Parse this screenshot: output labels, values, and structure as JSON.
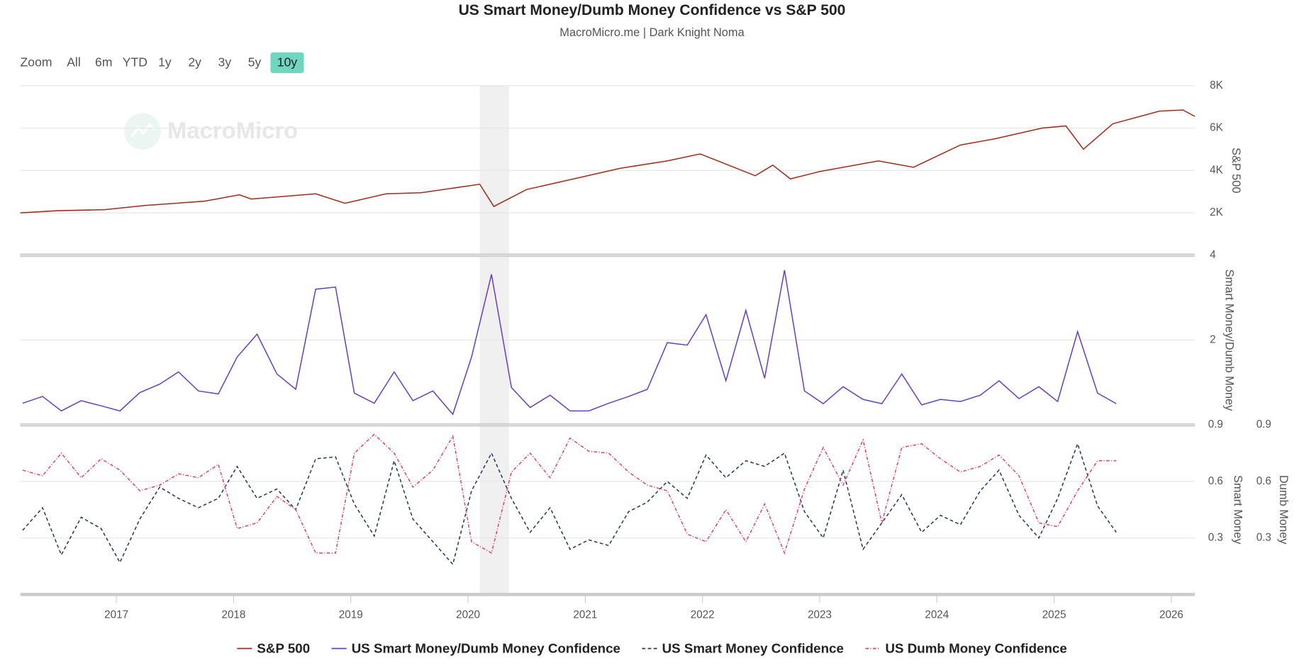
{
  "title": "US Smart Money/Dumb Money Confidence vs S&P 500",
  "subtitle": "MacroMicro.me | Dark Knight Noma",
  "watermark": "MacroMicro",
  "range_selector": {
    "label": "Zoom",
    "buttons": [
      "All",
      "6m",
      "YTD",
      "1y",
      "2y",
      "3y",
      "5y",
      "10y"
    ],
    "selected": 7
  },
  "chart_data": [
    {
      "type": "line",
      "xlim": [
        2016.18,
        2026.2
      ],
      "shade": [
        2020.1,
        2020.35
      ],
      "y_label": "S&P 500",
      "ylim": [
        0,
        8000
      ],
      "yticks": [
        {
          "value": 2000,
          "label": "2K"
        },
        {
          "value": 4000,
          "label": "4K"
        },
        {
          "value": 6000,
          "label": "6K"
        },
        {
          "value": 8000,
          "label": "8K"
        }
      ],
      "grid": true,
      "x": [
        2016.18,
        2016.5,
        2016.9,
        2017.25,
        2017.75,
        2018.05,
        2018.15,
        2018.7,
        2018.95,
        2019.3,
        2019.6,
        2020.1,
        2020.22,
        2020.5,
        2020.9,
        2021.3,
        2021.7,
        2021.98,
        2022.45,
        2022.6,
        2022.75,
        2023.0,
        2023.5,
        2023.8,
        2024.2,
        2024.5,
        2024.9,
        2025.1,
        2025.25,
        2025.5,
        2025.9,
        2026.1,
        2026.2
      ],
      "series": [
        {
          "name": "S&P 500",
          "color": "#a52a1a",
          "dash": "solid",
          "values": [
            2000,
            2100,
            2150,
            2350,
            2550,
            2850,
            2650,
            2900,
            2450,
            2900,
            2950,
            3350,
            2300,
            3100,
            3600,
            4100,
            4450,
            4780,
            3750,
            4250,
            3600,
            3950,
            4450,
            4150,
            5200,
            5500,
            6000,
            6100,
            5000,
            6200,
            6800,
            6850,
            6550
          ]
        }
      ]
    },
    {
      "type": "line",
      "y_label": "Smart Money/Dumb Money",
      "ylim": [
        0,
        4
      ],
      "yticks": [
        2,
        4
      ],
      "grid": true,
      "x": [
        2016.2,
        2016.37,
        2016.53,
        2016.7,
        2016.87,
        2017.03,
        2017.2,
        2017.37,
        2017.53,
        2017.7,
        2017.87,
        2018.03,
        2018.2,
        2018.37,
        2018.53,
        2018.7,
        2018.87,
        2019.03,
        2019.2,
        2019.37,
        2019.53,
        2019.7,
        2019.87,
        2020.03,
        2020.2,
        2020.37,
        2020.53,
        2020.7,
        2020.87,
        2021.03,
        2021.2,
        2021.37,
        2021.53,
        2021.7,
        2021.87,
        2022.03,
        2022.2,
        2022.37,
        2022.53,
        2022.7,
        2022.87,
        2023.03,
        2023.2,
        2023.37,
        2023.53,
        2023.7,
        2023.87,
        2024.03,
        2024.2,
        2024.37,
        2024.53,
        2024.7,
        2024.87,
        2025.03,
        2025.2,
        2025.37,
        2025.53
      ],
      "series": [
        {
          "name": "US Smart Money/Dumb Money Confidence",
          "color": "#6a3fc1",
          "dash": "solid",
          "values": [
            0.51,
            0.67,
            0.33,
            0.57,
            0.45,
            0.33,
            0.76,
            0.96,
            1.25,
            0.8,
            0.73,
            1.6,
            2.14,
            1.2,
            0.84,
            3.2,
            3.25,
            0.75,
            0.51,
            1.25,
            0.57,
            0.8,
            0.25,
            1.6,
            3.55,
            0.88,
            0.41,
            0.7,
            0.33,
            0.33,
            0.51,
            0.67,
            0.84,
            1.94,
            1.88,
            2.6,
            1.04,
            2.7,
            1.1,
            3.65,
            0.8,
            0.5,
            0.9,
            0.6,
            0.5,
            1.2,
            0.47,
            0.6,
            0.55,
            0.7,
            1.04,
            0.62,
            0.9,
            0.55,
            2.2,
            0.75,
            0.5
          ]
        }
      ]
    },
    {
      "type": "line",
      "y_label": "Smart Money",
      "y2_label": "Dumb Money",
      "ylim": [
        0,
        0.9
      ],
      "yticks": [
        0.3,
        0.6,
        0.9
      ],
      "y2lim": [
        0,
        0.9
      ],
      "y2ticks": [
        0.3,
        0.6,
        0.9
      ],
      "grid": true,
      "xticks": [
        2017,
        2018,
        2019,
        2020,
        2021,
        2022,
        2023,
        2024,
        2025,
        2026
      ],
      "x": [
        2016.2,
        2016.37,
        2016.53,
        2016.7,
        2016.87,
        2017.03,
        2017.2,
        2017.37,
        2017.53,
        2017.7,
        2017.87,
        2018.03,
        2018.2,
        2018.37,
        2018.53,
        2018.7,
        2018.87,
        2019.03,
        2019.2,
        2019.37,
        2019.53,
        2019.7,
        2019.87,
        2020.03,
        2020.2,
        2020.37,
        2020.53,
        2020.7,
        2020.87,
        2021.03,
        2021.2,
        2021.37,
        2021.53,
        2021.7,
        2021.87,
        2022.03,
        2022.2,
        2022.37,
        2022.53,
        2022.7,
        2022.87,
        2023.03,
        2023.2,
        2023.37,
        2023.53,
        2023.7,
        2023.87,
        2024.03,
        2024.2,
        2024.37,
        2024.53,
        2024.7,
        2024.87,
        2025.03,
        2025.2,
        2025.37,
        2025.53
      ],
      "series": [
        {
          "name": "US Smart Money Confidence",
          "color": "#1f3a5f",
          "dash": "dashed",
          "values": [
            0.34,
            0.46,
            0.21,
            0.41,
            0.35,
            0.17,
            0.4,
            0.57,
            0.51,
            0.46,
            0.51,
            0.68,
            0.51,
            0.56,
            0.45,
            0.72,
            0.73,
            0.48,
            0.31,
            0.71,
            0.4,
            0.28,
            0.16,
            0.55,
            0.75,
            0.51,
            0.33,
            0.46,
            0.24,
            0.29,
            0.26,
            0.44,
            0.49,
            0.6,
            0.51,
            0.74,
            0.62,
            0.71,
            0.68,
            0.75,
            0.44,
            0.3,
            0.66,
            0.24,
            0.38,
            0.53,
            0.33,
            0.42,
            0.37,
            0.55,
            0.66,
            0.42,
            0.3,
            0.51,
            0.8,
            0.47,
            0.33
          ]
        },
        {
          "name": "US Dumb Money Confidence",
          "color": "#e8436a",
          "dash": "dashdot",
          "axis": "y2",
          "values": [
            0.66,
            0.63,
            0.75,
            0.62,
            0.72,
            0.66,
            0.55,
            0.58,
            0.64,
            0.62,
            0.69,
            0.35,
            0.38,
            0.52,
            0.45,
            0.22,
            0.22,
            0.75,
            0.85,
            0.75,
            0.57,
            0.66,
            0.84,
            0.28,
            0.22,
            0.65,
            0.75,
            0.62,
            0.83,
            0.76,
            0.75,
            0.65,
            0.58,
            0.55,
            0.32,
            0.28,
            0.45,
            0.28,
            0.48,
            0.22,
            0.56,
            0.78,
            0.58,
            0.82,
            0.38,
            0.78,
            0.8,
            0.72,
            0.65,
            0.68,
            0.74,
            0.63,
            0.38,
            0.36,
            0.55,
            0.71,
            0.71
          ]
        }
      ]
    }
  ]
}
